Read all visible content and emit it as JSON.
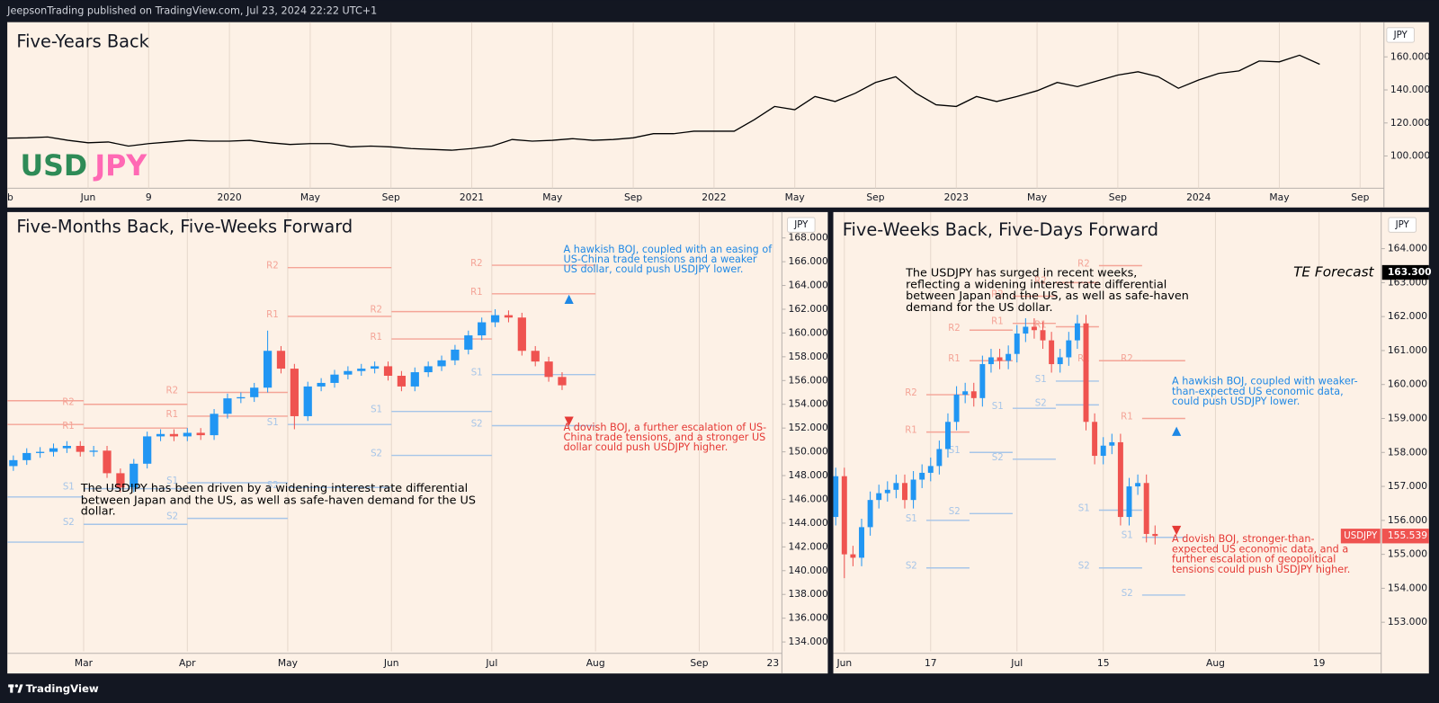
{
  "header": "JeepsonTrading published on TradingView.com, Jul 23, 2024 22:22 UTC+1",
  "footer": "TradingView",
  "chart_data": [
    {
      "type": "line",
      "title": "Five-Years Back",
      "axis_unit": "JPY",
      "symbol": [
        {
          "text": "USD",
          "color": "#2e8b57"
        },
        {
          "text": "JPY",
          "color": "#ff69b4"
        }
      ],
      "color": "#000000",
      "values": [
        110.8,
        111,
        111.5,
        109.5,
        108,
        108.5,
        106,
        107.5,
        108.5,
        109.5,
        109,
        109,
        109.5,
        108,
        107,
        107.5,
        107.5,
        105.5,
        106,
        105.5,
        104.5,
        104,
        103.5,
        104.5,
        106,
        110,
        109,
        109.5,
        110.5,
        109.5,
        110,
        111,
        113.5,
        113.5,
        115,
        115,
        115,
        122,
        130,
        128,
        136,
        133,
        138,
        144.5,
        148,
        138,
        131,
        130,
        136,
        133,
        136,
        139.5,
        144.5,
        142,
        145.5,
        149,
        151,
        148,
        141,
        146,
        150,
        151.5,
        157.5,
        157,
        161,
        155.5
      ],
      "xlim": [
        0,
        68.18
      ],
      "xticks": [
        {
          "value": 0,
          "label": "eb"
        },
        {
          "value": 4,
          "label": "Jun"
        },
        {
          "value": 7,
          "label": "9"
        },
        {
          "value": 11,
          "label": "2020"
        },
        {
          "value": 15,
          "label": "May"
        },
        {
          "value": 19,
          "label": "Sep"
        },
        {
          "value": 23,
          "label": "2021"
        },
        {
          "value": 27,
          "label": "May"
        },
        {
          "value": 31,
          "label": "Sep"
        },
        {
          "value": 35,
          "label": "2022"
        },
        {
          "value": 39,
          "label": "May"
        },
        {
          "value": 43,
          "label": "Sep"
        },
        {
          "value": 47,
          "label": "2023"
        },
        {
          "value": 51,
          "label": "May"
        },
        {
          "value": 55,
          "label": "Sep"
        },
        {
          "value": 59,
          "label": "2024"
        },
        {
          "value": 63,
          "label": "May"
        },
        {
          "value": 67,
          "label": "Sep"
        }
      ],
      "ylim": [
        80.5,
        181
      ],
      "yticks": [
        {
          "value": 100,
          "label": "100.000"
        },
        {
          "value": 120,
          "label": "120.000"
        },
        {
          "value": 140,
          "label": "140.000"
        },
        {
          "value": 160,
          "label": "160.000"
        }
      ],
      "grid": "x"
    },
    {
      "type": "candlestick",
      "title": "Five-Months Back, Five-Weeks Forward",
      "axis_unit": "JPY",
      "up_color": "#2196f3",
      "down_color": "#ef5350",
      "x": [
        8,
        12,
        16,
        20,
        24,
        28,
        32,
        36,
        40,
        44,
        48,
        52,
        56,
        60,
        64,
        68,
        72,
        76,
        80,
        84,
        88,
        92,
        96,
        100,
        104,
        108,
        112,
        116,
        120,
        124,
        128,
        132,
        136,
        140,
        144,
        148,
        152,
        156,
        160,
        164,
        168,
        172
      ],
      "open": [
        148.8,
        149.3,
        149.9,
        150.0,
        150.3,
        150.5,
        150.0,
        150.1,
        148.2,
        147.0,
        149.0,
        151.3,
        151.5,
        151.3,
        151.6,
        151.4,
        153.2,
        154.5,
        154.6,
        155.4,
        158.5,
        157.0,
        153.0,
        155.5,
        155.8,
        156.5,
        156.8,
        157.0,
        157.2,
        156.4,
        155.5,
        156.7,
        157.2,
        157.7,
        158.6,
        159.8,
        160.9,
        161.5,
        161.3,
        158.5,
        157.6,
        156.3
      ],
      "high": [
        149.7,
        150.3,
        150.4,
        150.7,
        150.9,
        150.9,
        150.5,
        150.5,
        148.6,
        149.4,
        151.7,
        151.9,
        151.9,
        152.0,
        152.0,
        153.6,
        154.9,
        155.0,
        155.8,
        160.2,
        158.9,
        157.4,
        155.9,
        156.2,
        156.9,
        157.2,
        157.4,
        157.6,
        157.6,
        156.8,
        157.1,
        157.6,
        158.1,
        159.0,
        160.2,
        161.3,
        162.0,
        161.9,
        161.7,
        158.9,
        158.0,
        156.7
      ],
      "low": [
        148.4,
        148.9,
        149.5,
        149.6,
        149.9,
        149.6,
        149.6,
        147.8,
        146.6,
        146.6,
        148.6,
        150.9,
        150.9,
        150.9,
        151.0,
        151.0,
        152.8,
        154.1,
        154.2,
        155.0,
        156.6,
        151.9,
        152.6,
        155.1,
        155.4,
        156.1,
        156.4,
        156.6,
        156.0,
        155.1,
        155.1,
        156.3,
        156.8,
        157.3,
        158.2,
        159.4,
        160.5,
        160.9,
        158.1,
        157.2,
        155.9,
        155.2
      ],
      "close": [
        149.3,
        149.9,
        150.0,
        150.3,
        150.5,
        150.0,
        150.1,
        148.2,
        147.0,
        149.0,
        151.3,
        151.5,
        151.3,
        151.6,
        151.4,
        153.2,
        154.5,
        154.6,
        155.4,
        158.5,
        157.0,
        153.0,
        155.5,
        155.8,
        156.5,
        156.8,
        157.0,
        157.2,
        156.4,
        155.5,
        156.7,
        157.2,
        157.7,
        158.6,
        159.8,
        160.9,
        161.5,
        161.3,
        158.5,
        157.6,
        156.3,
        155.6
      ],
      "xlim": [
        6.2,
        237.7
      ],
      "xticks": [
        {
          "value": 29,
          "label": "Mar"
        },
        {
          "value": 60,
          "label": "Apr"
        },
        {
          "value": 90,
          "label": "May"
        },
        {
          "value": 121,
          "label": "Jun"
        },
        {
          "value": 151,
          "label": "Jul"
        },
        {
          "value": 182,
          "label": "Aug"
        },
        {
          "value": 213,
          "label": "Sep"
        },
        {
          "value": 235,
          "label": "23"
        }
      ],
      "ylim": [
        133.2,
        170.1
      ],
      "yticks": [
        {
          "value": 134,
          "label": "134.000"
        },
        {
          "value": 136,
          "label": "136.000"
        },
        {
          "value": 138,
          "label": "138.000"
        },
        {
          "value": 140,
          "label": "140.000"
        },
        {
          "value": 142,
          "label": "142.000"
        },
        {
          "value": 144,
          "label": "144.000"
        },
        {
          "value": 146,
          "label": "146.000"
        },
        {
          "value": 148,
          "label": "148.000"
        },
        {
          "value": 150,
          "label": "150.000"
        },
        {
          "value": 152,
          "label": "152.000"
        },
        {
          "value": 154,
          "label": "154.000"
        },
        {
          "value": 156,
          "label": "156.000"
        },
        {
          "value": 158,
          "label": "158.000"
        },
        {
          "value": 160,
          "label": "160.000"
        },
        {
          "value": 162,
          "label": "162.000"
        },
        {
          "value": 164,
          "label": "164.000"
        },
        {
          "value": 166,
          "label": "166.000"
        },
        {
          "value": 168,
          "label": "168.000"
        }
      ],
      "grid": "x",
      "pivots": {
        "labels": [
          "R2",
          "R1",
          "S1",
          "S2"
        ],
        "colors": [
          "#f4a497",
          "#f4a497",
          "#a6c5e8",
          "#a6c5e8"
        ],
        "blocks": [
          {
            "start": 0,
            "end": 29,
            "levels": [
              154.3,
              152.3,
              146.2,
              142.4
            ]
          },
          {
            "start": 29,
            "end": 60,
            "levels": [
              154.0,
              152.0,
              146.9,
              143.9
            ]
          },
          {
            "start": 60,
            "end": 90,
            "levels": [
              155.0,
              153.0,
              147.4,
              144.4
            ]
          },
          {
            "start": 90,
            "end": 121,
            "levels": [
              165.5,
              161.4,
              152.3,
              147.0
            ]
          },
          {
            "start": 121,
            "end": 151,
            "levels": [
              161.8,
              159.5,
              153.4,
              149.7
            ]
          },
          {
            "start": 151,
            "end": 182,
            "levels": [
              165.7,
              163.3,
              156.5,
              152.2
            ]
          }
        ]
      },
      "annotations": [
        {
          "text": "The USDJPY has been driven by a widening interest rate differential between Japan and the US, as well as safe-haven demand for the US dollar.",
          "color": "#000000"
        },
        {
          "text": "A hawkish BOJ, coupled with an easing of US-China trade tensions and a weaker US dollar, could push USDJPY lower.",
          "color": "#1e88e5",
          "marker": "up"
        },
        {
          "text": "A dovish BOJ, a further escalation of US-China trade tensions, and a stronger US dollar could push USDJPY higher.",
          "color": "#e53935",
          "marker": "down"
        }
      ]
    },
    {
      "type": "candlestick",
      "title": "Five-Weeks Back, Five-Days Forward",
      "axis_unit": "JPY",
      "up_color": "#2196f3",
      "down_color": "#ef5350",
      "x": [
        -1,
        0,
        1,
        2,
        3,
        4,
        5,
        6,
        7,
        8,
        9,
        10,
        11,
        12,
        13,
        14,
        15,
        16,
        17,
        18,
        19,
        20,
        21,
        22,
        23,
        24,
        25,
        26,
        27,
        28,
        29,
        30,
        31,
        32,
        33,
        34,
        35,
        36
      ],
      "open": [
        156.1,
        157.3,
        155.0,
        154.9,
        155.8,
        156.6,
        156.8,
        156.9,
        157.1,
        156.6,
        157.2,
        157.4,
        157.6,
        158.1,
        158.9,
        159.7,
        159.8,
        159.6,
        160.6,
        160.8,
        160.7,
        160.9,
        161.5,
        161.7,
        161.6,
        161.3,
        160.6,
        160.8,
        161.3,
        161.8,
        158.9,
        157.9,
        158.2,
        158.3,
        156.1,
        157.0,
        157.1,
        155.6
      ],
      "high": [
        157.55,
        157.55,
        155.25,
        156.05,
        156.85,
        157.05,
        157.15,
        157.35,
        157.35,
        157.45,
        157.65,
        157.85,
        158.35,
        159.15,
        159.95,
        160.05,
        160.05,
        160.85,
        161.05,
        161.05,
        161.15,
        161.75,
        161.95,
        161.95,
        161.85,
        161.55,
        161.05,
        161.55,
        162.05,
        162.05,
        159.15,
        158.45,
        158.55,
        158.55,
        157.25,
        157.35,
        157.35,
        155.85
      ],
      "low": [
        155.85,
        154.3,
        154.65,
        154.65,
        155.55,
        156.35,
        156.55,
        156.65,
        156.35,
        156.35,
        156.95,
        157.15,
        157.35,
        157.85,
        158.65,
        159.45,
        159.35,
        159.35,
        160.35,
        160.45,
        160.45,
        160.65,
        161.25,
        161.35,
        161.05,
        160.35,
        160.35,
        160.55,
        161.05,
        158.65,
        157.65,
        157.65,
        157.95,
        155.85,
        155.85,
        156.75,
        155.35,
        155.29
      ],
      "close": [
        157.3,
        155.0,
        154.9,
        155.8,
        156.6,
        156.8,
        156.9,
        157.1,
        156.6,
        157.2,
        157.4,
        157.6,
        158.1,
        158.9,
        159.7,
        159.8,
        159.6,
        160.6,
        160.8,
        160.7,
        160.9,
        161.5,
        161.7,
        161.6,
        161.3,
        160.6,
        160.8,
        161.3,
        161.8,
        158.9,
        157.9,
        158.2,
        158.3,
        156.1,
        157.0,
        157.1,
        155.6,
        155.54
      ],
      "xlim": [
        -1.28,
        62.2
      ],
      "xticks": [
        {
          "value": 0,
          "label": "Jun"
        },
        {
          "value": 10,
          "label": "17"
        },
        {
          "value": 20,
          "label": "Jul"
        },
        {
          "value": 30,
          "label": "15"
        },
        {
          "value": 43,
          "label": "Aug"
        },
        {
          "value": 55,
          "label": "19"
        }
      ],
      "ylim": [
        152.14,
        165.05
      ],
      "yticks": [
        {
          "value": 153,
          "label": "153.000"
        },
        {
          "value": 154,
          "label": "154.000"
        },
        {
          "value": 155,
          "label": "155.000"
        },
        {
          "value": 156,
          "label": "156.000"
        },
        {
          "value": 157,
          "label": "157.000"
        },
        {
          "value": 158,
          "label": "158.000"
        },
        {
          "value": 159,
          "label": "159.000"
        },
        {
          "value": 160,
          "label": "160.000"
        },
        {
          "value": 161,
          "label": "161.000"
        },
        {
          "value": 162,
          "label": "162.000"
        },
        {
          "value": 163,
          "label": "163.000"
        },
        {
          "value": 164,
          "label": "164.000"
        }
      ],
      "grid": "x",
      "pivots": {
        "labels": [
          "R2",
          "R1",
          "S1",
          "S2"
        ],
        "colors": [
          "#f4a497",
          "#f4a497",
          "#a6c5e8",
          "#a6c5e8"
        ],
        "blocks": [
          {
            "start": 9.5,
            "end": 14.5,
            "levels": [
              159.7,
              158.6,
              156.0,
              154.6
            ]
          },
          {
            "start": 14.5,
            "end": 19.5,
            "levels": [
              161.6,
              160.7,
              158.0,
              156.2
            ]
          },
          {
            "start": 19.5,
            "end": 24.5,
            "levels": [
              162.6,
              161.8,
              159.3,
              157.8
            ]
          },
          {
            "start": 24.5,
            "end": 29.5,
            "levels": [
              163.0,
              161.7,
              160.1,
              159.4
            ]
          },
          {
            "start": 29.5,
            "end": 34.5,
            "levels": [
              163.5,
              160.7,
              156.3,
              154.6
            ]
          },
          {
            "start": 34.5,
            "end": 39.5,
            "levels": [
              160.7,
              159.0,
              155.5,
              153.8
            ]
          }
        ]
      },
      "annotations": [
        {
          "text": "The USDJPY has surged in recent weeks, reflecting a widening interest rate differential between Japan and the US, as well as safe-haven demand for the US dollar.",
          "color": "#000000"
        },
        {
          "text": "A hawkish BOJ, coupled with weaker-than-expected US economic data, could push USDJPY lower.",
          "color": "#1e88e5",
          "marker": "up"
        },
        {
          "text": "A dovish BOJ, stronger-than-expected US economic data, and a further escalation of geopolitical tensions could push USDJPY higher.",
          "color": "#e53935",
          "marker": "down"
        }
      ],
      "forecast": {
        "label": "TE Forecast",
        "value": 163.3,
        "value_label": "163.300",
        "color": "#000000"
      },
      "last_price": {
        "name": "USDJPY",
        "value": 155.539,
        "color": "#ef5350"
      }
    }
  ]
}
